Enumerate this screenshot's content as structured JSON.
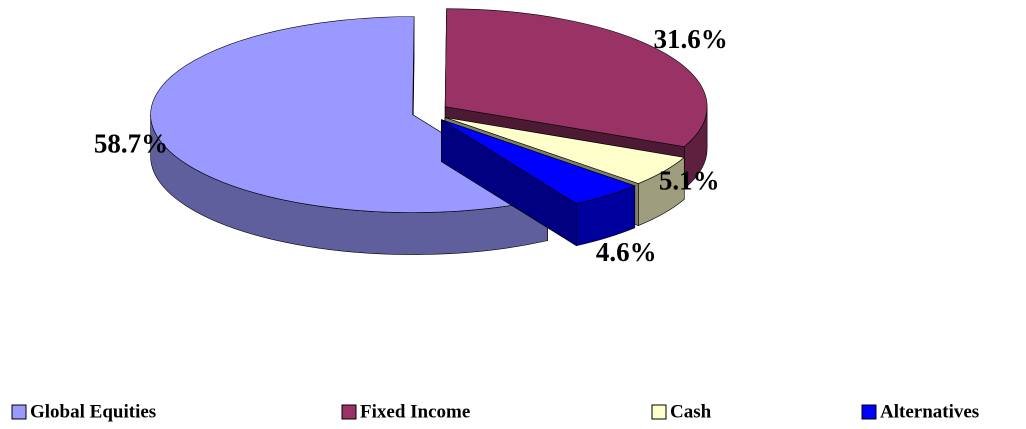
{
  "chart_data": {
    "type": "pie",
    "categories": [
      "Global Equities",
      "Fixed Income",
      "Cash",
      "Alternatives"
    ],
    "values": [
      58.7,
      31.6,
      5.1,
      4.6
    ],
    "value_labels": [
      "58.7%",
      "31.6%",
      "5.1%",
      "4.6%"
    ],
    "colors": [
      "#9999ff",
      "#993366",
      "#ffffcc",
      "#0000ff"
    ],
    "legend": "bottom"
  }
}
